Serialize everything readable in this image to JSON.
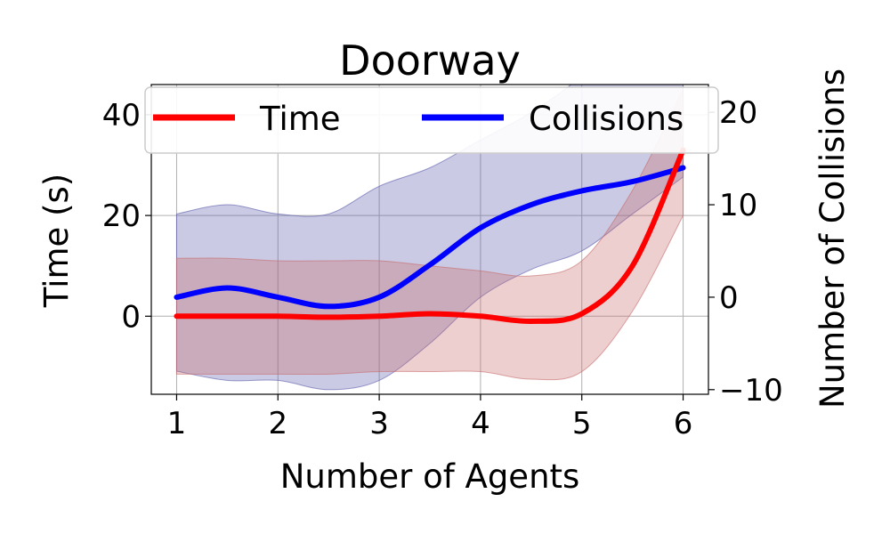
{
  "chart_data": {
    "type": "line",
    "title": "Doorway",
    "xlabel": "Number of Agents",
    "ylabel_left": "Time (s)",
    "ylabel_right": "Number of Collisions",
    "x_ticks": [
      "1",
      "2",
      "3",
      "4",
      "5",
      "6"
    ],
    "y_left_ticks": [
      "0",
      "20",
      "40"
    ],
    "y_right_ticks": [
      "−10",
      "0",
      "10",
      "20"
    ],
    "xlim": [
      0.75,
      6.25
    ],
    "ylim_left": [
      -15.5,
      46
    ],
    "ylim_right": [
      -10.5,
      23
    ],
    "grid": true,
    "legend_position": "top",
    "legend": [
      "Time",
      "Collisions"
    ],
    "colors": {
      "time": "#ff0000",
      "collisions": "#0000ff",
      "time_band": "#c76a6a",
      "collisions_band": "#5a5aaa"
    },
    "x": [
      1,
      1.5,
      2,
      2.5,
      3,
      3.5,
      4,
      4.5,
      5,
      5.5,
      6
    ],
    "series": [
      {
        "name": "Time",
        "axis": "left",
        "values": [
          0,
          0,
          0,
          -0.2,
          0,
          0.5,
          0,
          -1,
          0.5,
          10,
          33
        ],
        "upper": [
          11.5,
          11.5,
          11,
          11,
          11,
          10,
          9,
          8,
          11,
          25,
          45
        ],
        "lower": [
          -11.5,
          -11.5,
          -11.5,
          -11.5,
          -11,
          -11,
          -11,
          -12.5,
          -11,
          1,
          20
        ]
      },
      {
        "name": "Collisions",
        "axis": "right",
        "values": [
          0,
          1,
          0,
          -1,
          0,
          3.5,
          7.5,
          10,
          11.5,
          12.5,
          14
        ],
        "upper": [
          9,
          10,
          9,
          9,
          12,
          14,
          17,
          20,
          24,
          30,
          36
        ],
        "lower": [
          -8,
          -9,
          -9,
          -10,
          -9,
          -5,
          0,
          3,
          5,
          9,
          13
        ]
      }
    ]
  }
}
